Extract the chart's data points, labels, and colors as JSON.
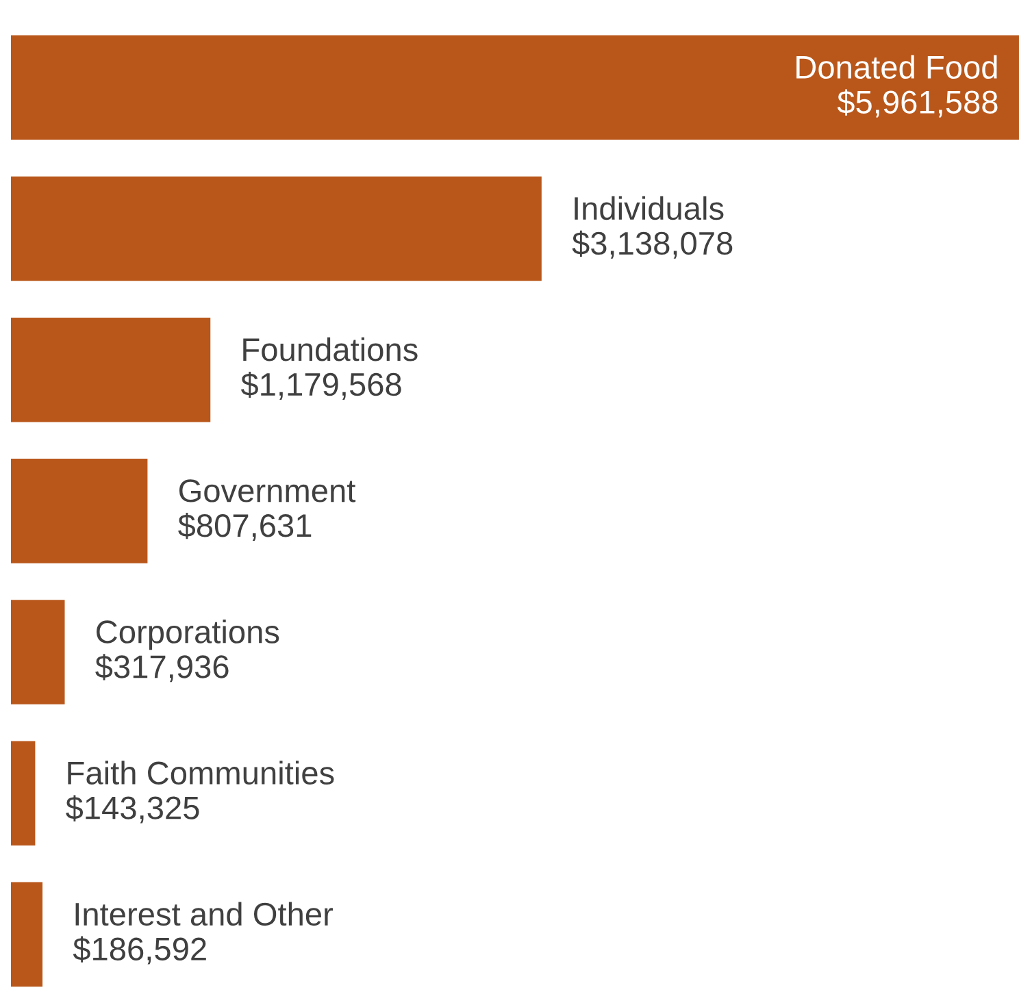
{
  "chart_data": {
    "type": "bar",
    "orientation": "horizontal",
    "categories": [
      "Donated Food",
      "Individuals",
      "Foundations",
      "Government",
      "Corporations",
      "Faith Communities",
      "Interest and Other"
    ],
    "values": [
      5961588,
      3138078,
      1179568,
      807631,
      317936,
      143325,
      186592
    ],
    "value_labels": [
      "$5,961,588",
      "$3,138,078",
      "$1,179,568",
      "$807,631",
      "$317,936",
      "$143,325",
      "$186,592"
    ],
    "color": "#b9571b"
  }
}
